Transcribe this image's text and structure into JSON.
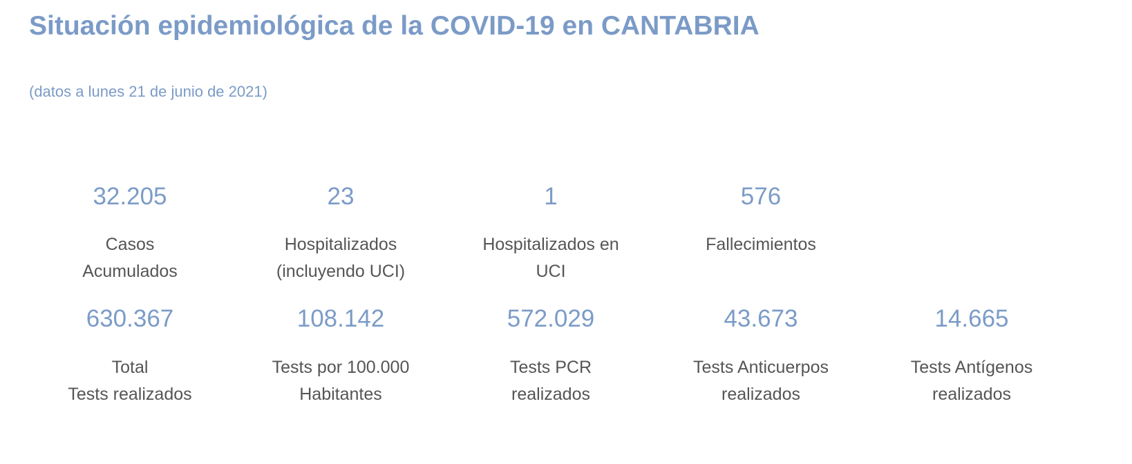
{
  "title": "Situación epidemiológica de la COVID-19 en CANTABRIA",
  "subtitle": "(datos a lunes 21 de junio de 2021)",
  "row1": [
    {
      "value": "32.205",
      "label": [
        "Casos",
        "Acumulados"
      ]
    },
    {
      "value": "23",
      "label": [
        "Hospitalizados",
        "(incluyendo UCI)"
      ]
    },
    {
      "value": "1",
      "label": [
        "Hospitalizados en",
        "UCI"
      ]
    },
    {
      "value": "576",
      "label": [
        "Fallecimientos",
        ""
      ]
    }
  ],
  "row2": [
    {
      "value": "630.367",
      "label": [
        "Total",
        "Tests realizados"
      ]
    },
    {
      "value": "108.142",
      "label": [
        "Tests por 100.000",
        "Habitantes"
      ]
    },
    {
      "value": "572.029",
      "label": [
        "Tests PCR",
        "realizados"
      ]
    },
    {
      "value": "43.673",
      "label": [
        "Tests Anticuerpos",
        "realizados"
      ]
    },
    {
      "value": "14.665",
      "label": [
        "Tests Antígenos",
        "realizados"
      ]
    }
  ],
  "colors": {
    "accent": "#7b9bc7",
    "label": "#555555"
  }
}
